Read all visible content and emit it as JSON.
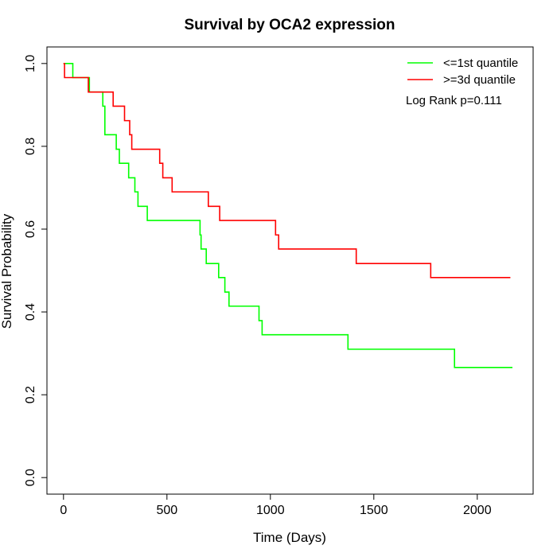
{
  "chart_data": {
    "type": "line",
    "title": "Survival by OCA2 expression",
    "xlabel": "Time (Days)",
    "ylabel": "Survival Probability",
    "xlim": [
      -80,
      2270
    ],
    "ylim": [
      -0.04,
      1.04
    ],
    "x_ticks": [
      0,
      500,
      1000,
      1500,
      2000
    ],
    "y_ticks": [
      0.0,
      0.2,
      0.4,
      0.6,
      0.8,
      1.0
    ],
    "x_tick_labels": [
      "0",
      "500",
      "1000",
      "1500",
      "2000"
    ],
    "y_tick_labels": [
      "0.0",
      "0.2",
      "0.4",
      "0.6",
      "0.8",
      "1.0"
    ],
    "legend_position": "top-right",
    "annotation": "Log Rank p=0.111",
    "series": [
      {
        "name": "<=1st quantile",
        "color": "#00ff00",
        "step_points": [
          [
            0,
            1.0
          ],
          [
            45,
            0.966
          ],
          [
            125,
            0.931
          ],
          [
            190,
            0.897
          ],
          [
            200,
            0.828
          ],
          [
            255,
            0.793
          ],
          [
            270,
            0.759
          ],
          [
            315,
            0.724
          ],
          [
            345,
            0.69
          ],
          [
            360,
            0.655
          ],
          [
            405,
            0.621
          ],
          [
            660,
            0.586
          ],
          [
            665,
            0.552
          ],
          [
            690,
            0.517
          ],
          [
            750,
            0.483
          ],
          [
            780,
            0.448
          ],
          [
            800,
            0.414
          ],
          [
            945,
            0.379
          ],
          [
            960,
            0.345
          ],
          [
            1375,
            0.31
          ],
          [
            1890,
            0.266
          ],
          [
            2170,
            0.266
          ]
        ]
      },
      {
        "name": ">=3d quantile",
        "color": "#ff0000",
        "step_points": [
          [
            0,
            1.0
          ],
          [
            5,
            0.966
          ],
          [
            120,
            0.931
          ],
          [
            240,
            0.897
          ],
          [
            295,
            0.862
          ],
          [
            320,
            0.828
          ],
          [
            330,
            0.793
          ],
          [
            465,
            0.759
          ],
          [
            480,
            0.724
          ],
          [
            525,
            0.69
          ],
          [
            700,
            0.655
          ],
          [
            755,
            0.621
          ],
          [
            1025,
            0.586
          ],
          [
            1040,
            0.552
          ],
          [
            1415,
            0.517
          ],
          [
            1775,
            0.483
          ],
          [
            2160,
            0.483
          ]
        ]
      }
    ]
  }
}
